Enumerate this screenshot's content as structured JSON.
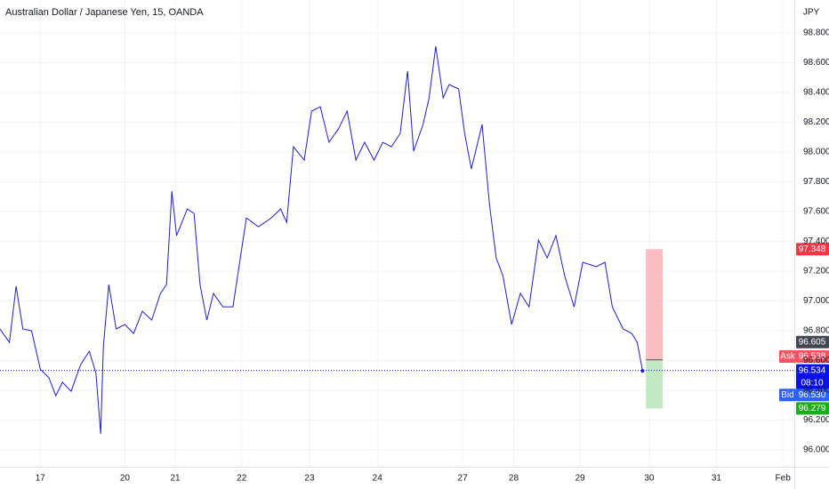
{
  "chart_data": {
    "type": "line",
    "title": "Australian Dollar / Japanese Yen, 15, OANDA",
    "y_axis_label": "JPY",
    "x": [
      -0.6,
      -0.46,
      -0.36,
      -0.26,
      -0.13,
      0,
      0.13,
      0.23,
      0.33,
      0.46,
      0.6,
      0.73,
      0.83,
      0.9,
      0.94,
      1.02,
      1.13,
      1.26,
      1.39,
      1.52,
      1.66,
      1.79,
      1.88,
      1.96,
      2.03,
      2.19,
      2.29,
      2.38,
      2.48,
      2.58,
      2.72,
      2.87,
      2.98,
      3.07,
      3.25,
      3.44,
      3.58,
      3.67,
      3.77,
      3.93,
      4.04,
      4.17,
      4.3,
      4.44,
      4.57,
      4.7,
      4.83,
      4.97,
      5.1,
      5.23,
      5.36,
      5.47,
      5.56,
      5.7,
      5.79,
      5.89,
      6.0,
      6.09,
      6.23,
      6.32,
      6.42,
      6.58,
      6.69,
      6.79,
      6.89,
      7.02,
      7.15,
      7.28,
      7.42,
      7.55,
      7.68,
      7.81,
      7.95,
      8.08,
      8.28,
      8.41,
      8.52,
      8.68,
      8.81,
      8.89,
      8.97
    ],
    "series": [
      {
        "color": "#1e1ed2",
        "values": [
          96.812,
          96.722,
          97.099,
          96.812,
          96.8,
          96.543,
          96.484,
          96.364,
          96.454,
          96.394,
          96.573,
          96.663,
          96.513,
          96.107,
          96.693,
          97.11,
          96.812,
          96.842,
          96.782,
          96.931,
          96.872,
          97.051,
          97.11,
          97.737,
          97.439,
          97.618,
          97.588,
          97.11,
          96.872,
          97.051,
          96.961,
          96.961,
          97.29,
          97.558,
          97.499,
          97.558,
          97.618,
          97.528,
          98.036,
          97.946,
          98.275,
          98.304,
          98.066,
          98.155,
          98.275,
          97.946,
          98.066,
          97.946,
          98.066,
          98.036,
          98.125,
          98.543,
          98.006,
          98.185,
          98.364,
          98.71,
          98.364,
          98.454,
          98.424,
          98.125,
          97.887,
          98.185,
          97.648,
          97.29,
          97.17,
          96.842,
          97.051,
          96.961,
          97.409,
          97.29,
          97.439,
          97.17,
          96.961,
          97.26,
          97.23,
          97.26,
          96.961,
          96.812,
          96.782,
          96.722,
          96.531
        ]
      }
    ],
    "xlim": [
      -0.6,
      11.23
    ],
    "ylim": [
      95.887,
      99.021
    ],
    "xticks": [
      {
        "value": 0,
        "label": "17"
      },
      {
        "value": 1.26,
        "label": "20"
      },
      {
        "value": 2.01,
        "label": "21"
      },
      {
        "value": 3.0,
        "label": "22"
      },
      {
        "value": 4.01,
        "label": "23"
      },
      {
        "value": 5.02,
        "label": "24"
      },
      {
        "value": 6.29,
        "label": "27"
      },
      {
        "value": 7.05,
        "label": "28"
      },
      {
        "value": 8.04,
        "label": "29"
      },
      {
        "value": 9.07,
        "label": "30"
      },
      {
        "value": 10.07,
        "label": "31"
      },
      {
        "value": 11.06,
        "label": "Feb"
      }
    ],
    "yticks": [
      {
        "value": 96,
        "label": "96.000"
      },
      {
        "value": 96.2,
        "label": "96.200"
      },
      {
        "value": 96.4,
        "label": "96.400"
      },
      {
        "value": 96.6,
        "label": "96.600"
      },
      {
        "value": 96.8,
        "label": "96.800"
      },
      {
        "value": 97,
        "label": "97.000"
      },
      {
        "value": 97.2,
        "label": "97.200"
      },
      {
        "value": 97.4,
        "label": "97.400"
      },
      {
        "value": 97.6,
        "label": "97.600"
      },
      {
        "value": 97.8,
        "label": "97.800"
      },
      {
        "value": 98,
        "label": "98.000"
      },
      {
        "value": 98.2,
        "label": "98.200"
      },
      {
        "value": 98.4,
        "label": "98.400"
      },
      {
        "value": 98.6,
        "label": "98.600"
      },
      {
        "value": 98.8,
        "label": "98.800"
      }
    ],
    "grid": true,
    "markers": [
      {
        "value": 97.348,
        "label": "97.348",
        "color": "#f23645"
      },
      {
        "value": 96.605,
        "label": "96.605",
        "color": "#434651"
      },
      {
        "value": 96.538,
        "label": "96.538",
        "color": "#f7525f",
        "tag": "Ask"
      },
      {
        "value": 96.534,
        "label": "96.534",
        "color": "#0b12e8",
        "countdown": "08:10"
      },
      {
        "value": 96.53,
        "label": "96.530",
        "color": "#2962ff",
        "tag": "Bid"
      },
      {
        "value": 96.279,
        "label": "96.279",
        "color": "#1eab1e"
      }
    ],
    "position": {
      "x_start": 9.02,
      "x_end": 9.27,
      "target_color": "#f7a1a8",
      "stop_color": "#a9e0a9"
    }
  }
}
